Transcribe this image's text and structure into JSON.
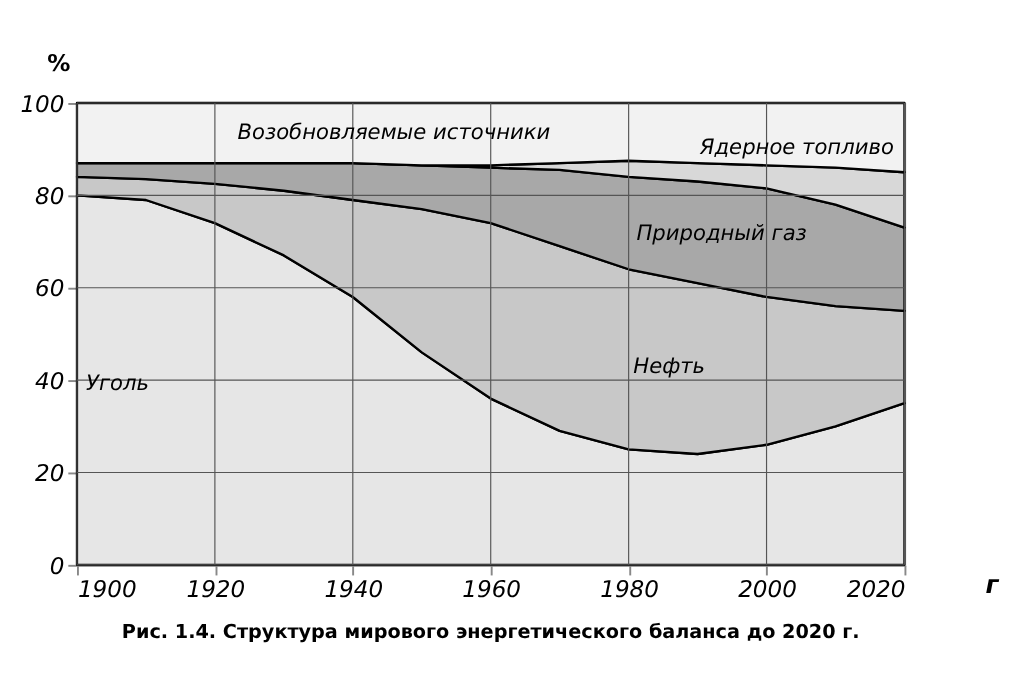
{
  "chart_data": {
    "type": "area",
    "stacked": true,
    "xlabel": "г",
    "ylabel": "%",
    "x": [
      1900,
      1910,
      1920,
      1930,
      1940,
      1950,
      1960,
      1970,
      1980,
      1990,
      2000,
      2010,
      2020
    ],
    "series": [
      {
        "name": "Уголь",
        "color": "#e6e6e6",
        "values": [
          80,
          79,
          74,
          67,
          58,
          46,
          36,
          29,
          25,
          24,
          26,
          30,
          35
        ]
      },
      {
        "name": "Нефть",
        "color": "#c8c8c8",
        "values": [
          4,
          4.5,
          8.5,
          14,
          21,
          31,
          38,
          40,
          39,
          37,
          32,
          26,
          20
        ]
      },
      {
        "name": "Природный газ",
        "color": "#a8a8a8",
        "values": [
          3,
          3.5,
          4.5,
          6,
          8,
          9.5,
          12,
          16.5,
          20,
          22,
          23.5,
          22,
          18
        ]
      },
      {
        "name": "Ядерное топливо",
        "color": "#d8d8d8",
        "values": [
          0,
          0,
          0,
          0,
          0,
          0,
          0.5,
          1.5,
          3.5,
          4,
          5,
          8,
          12
        ]
      },
      {
        "name": "Возобновляемые источники",
        "color": "#f2f2f2",
        "values": [
          13,
          13,
          13,
          13,
          13,
          13.5,
          13.5,
          13,
          12.5,
          13,
          13.5,
          14,
          15
        ]
      }
    ],
    "xlim": [
      1900,
      2020
    ],
    "xticks": [
      1900,
      1920,
      1940,
      1960,
      1980,
      2000,
      2020
    ],
    "ylim": [
      0,
      100
    ],
    "yticks": [
      0,
      20,
      40,
      60,
      80,
      100
    ],
    "grid": true,
    "legend": false,
    "annotations": [
      "Рис. 1.4. Структура мирового энергетического баланса до 2020 г."
    ]
  }
}
